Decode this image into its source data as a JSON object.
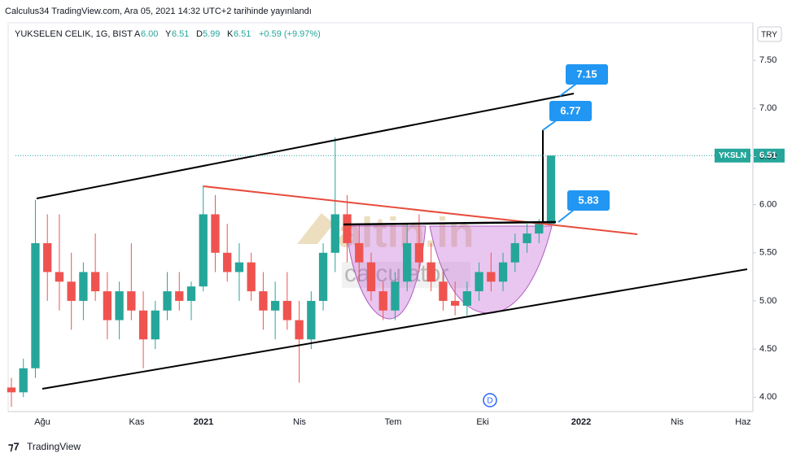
{
  "chart_data": {
    "type": "candlestick",
    "publisher": "Calculus34 TradingView.com, Ara 05, 2021 14:32 UTC+2 tarihinde yayınlandı",
    "symbol": "YUKSELEN CELIK, 1G, BIST",
    "ohlc_legend": [
      {
        "key": "A",
        "value": "6.00"
      },
      {
        "key": "Y",
        "value": "6.51"
      },
      {
        "key": "D",
        "value": "5.99"
      },
      {
        "key": "K",
        "value": "6.51"
      }
    ],
    "change": "+0.59 (+9.97%)",
    "currency": "TRY",
    "ticker": "YKSLN",
    "last_price": 6.51,
    "xtick_labels": [
      "Ağu",
      "Kas",
      "2021",
      "Nis",
      "Tem",
      "Eki",
      "2022",
      "Nis",
      "Haz"
    ],
    "annotations": [
      7.15,
      6.77,
      5.83
    ],
    "event_marker": "D",
    "watermark": [
      "altin.in",
      "calculator"
    ],
    "footer": "TradingView",
    "up_color": "#26a69a",
    "down_color": "#ef5350",
    "ylim": [
      3.85,
      7.89
    ],
    "yticks": [
      {
        "value": 4,
        "label": "4.00"
      },
      {
        "value": 4.5,
        "label": "4.50"
      },
      {
        "value": 5,
        "label": "5.00"
      },
      {
        "value": 5.5,
        "label": "5.50"
      },
      {
        "value": 6,
        "label": "6.00"
      },
      {
        "value": 6.5,
        "label": "6.50"
      },
      {
        "value": 7,
        "label": "7.00"
      },
      {
        "value": 7.5,
        "label": "7.50"
      }
    ],
    "open": [
      4.1,
      4.05,
      4.3,
      5.6,
      5.3,
      5.2,
      5.0,
      5.3,
      5.1,
      4.8,
      5.1,
      4.9,
      4.6,
      4.9,
      5.1,
      5.0,
      5.15,
      5.9,
      5.5,
      5.3,
      5.4,
      5.1,
      4.9,
      5.0,
      4.8,
      4.6,
      5.0,
      5.5,
      5.9,
      5.6,
      5.4,
      5.1,
      4.9,
      5.2,
      5.6,
      5.4,
      5.2,
      5.0,
      4.95,
      5.1,
      5.3,
      5.2,
      5.4,
      5.6,
      5.7,
      5.8
    ],
    "high": [
      4.2,
      4.4,
      6.05,
      5.9,
      5.9,
      5.5,
      5.4,
      5.7,
      5.3,
      5.2,
      5.6,
      5.1,
      5.0,
      5.3,
      5.3,
      5.2,
      6.2,
      6.1,
      5.8,
      5.6,
      5.5,
      5.3,
      5.2,
      5.3,
      5.0,
      5.1,
      5.6,
      6.7,
      6.1,
      5.8,
      5.5,
      5.2,
      5.3,
      5.8,
      5.9,
      5.6,
      5.3,
      5.2,
      5.2,
      5.4,
      5.5,
      5.5,
      5.7,
      5.8,
      5.85,
      6.51
    ],
    "low": [
      3.9,
      4.0,
      4.2,
      5.0,
      4.9,
      4.7,
      4.8,
      5.0,
      4.6,
      4.6,
      4.8,
      4.3,
      4.5,
      4.8,
      4.9,
      4.8,
      5.1,
      5.3,
      5.2,
      5.0,
      5.0,
      4.7,
      4.6,
      4.7,
      4.15,
      4.5,
      4.9,
      5.3,
      5.4,
      5.2,
      5.0,
      4.8,
      4.8,
      5.1,
      5.3,
      5.1,
      4.9,
      4.85,
      4.85,
      5.0,
      5.1,
      5.1,
      5.3,
      5.5,
      5.6,
      5.8
    ],
    "close": [
      4.05,
      4.3,
      5.6,
      5.3,
      5.2,
      5.0,
      5.3,
      5.1,
      4.8,
      5.1,
      4.9,
      4.6,
      4.9,
      5.1,
      5.0,
      5.15,
      5.9,
      5.5,
      5.3,
      5.4,
      5.1,
      4.9,
      5.0,
      4.8,
      4.6,
      5.0,
      5.5,
      5.9,
      5.6,
      5.4,
      5.1,
      4.9,
      5.2,
      5.6,
      5.4,
      5.2,
      5.0,
      4.95,
      5.1,
      5.3,
      5.2,
      5.4,
      5.6,
      5.7,
      5.8,
      6.51
    ]
  }
}
